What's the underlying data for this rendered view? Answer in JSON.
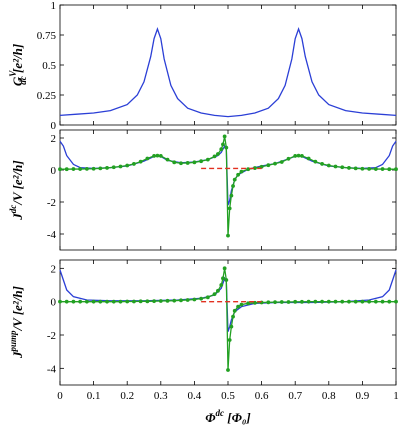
{
  "chart_data": [
    {
      "type": "line",
      "ylabel_main": "G",
      "ylabel_sup": "V",
      "ylabel_sub": "dc",
      "ylabel_unit": " [e²/h]",
      "xlim": [
        0,
        1
      ],
      "ylim": [
        0,
        1
      ],
      "yticks": [
        "0",
        "0.25",
        "0.5",
        "0.75",
        "1"
      ],
      "grid": false,
      "series": [
        {
          "color": "#2b3fd6",
          "x": [
            0,
            0.05,
            0.1,
            0.15,
            0.2,
            0.23,
            0.25,
            0.27,
            0.28,
            0.29,
            0.3,
            0.31,
            0.33,
            0.35,
            0.38,
            0.42,
            0.46,
            0.5,
            0.54,
            0.58,
            0.62,
            0.65,
            0.67,
            0.69,
            0.7,
            0.71,
            0.72,
            0.73,
            0.75,
            0.77,
            0.8,
            0.85,
            0.9,
            0.95,
            1.0
          ],
          "y": [
            0.08,
            0.09,
            0.1,
            0.12,
            0.17,
            0.25,
            0.36,
            0.57,
            0.72,
            0.8,
            0.72,
            0.55,
            0.33,
            0.22,
            0.14,
            0.1,
            0.08,
            0.07,
            0.08,
            0.1,
            0.14,
            0.22,
            0.33,
            0.55,
            0.72,
            0.8,
            0.72,
            0.57,
            0.36,
            0.25,
            0.17,
            0.12,
            0.1,
            0.09,
            0.08
          ]
        }
      ]
    },
    {
      "type": "line",
      "ylabel_main": "J",
      "ylabel_sup": "dc",
      "ylabel_sub": "",
      "ylabel_unit": "/V [e²/h]",
      "xlim": [
        0,
        1
      ],
      "ylim": [
        -5,
        2.5
      ],
      "yticks": [
        "-4",
        "-2",
        "0",
        "2"
      ],
      "grid": false,
      "series": [
        {
          "color": "#2b3fd6",
          "x": [
            0,
            0.01,
            0.02,
            0.04,
            0.06,
            0.1,
            0.15,
            0.2,
            0.25,
            0.28,
            0.29,
            0.3,
            0.32,
            0.36,
            0.4,
            0.44,
            0.47,
            0.48,
            0.49,
            0.495,
            0.5,
            0.505,
            0.51,
            0.52,
            0.53,
            0.56,
            0.6,
            0.64,
            0.68,
            0.7,
            0.71,
            0.72,
            0.75,
            0.8,
            0.85,
            0.9,
            0.94,
            0.96,
            0.98,
            0.99,
            1.0
          ],
          "y": [
            1.8,
            1.5,
            0.9,
            0.35,
            0.15,
            0.1,
            0.15,
            0.25,
            0.55,
            0.85,
            0.9,
            0.85,
            0.6,
            0.45,
            0.5,
            0.65,
            0.9,
            1.1,
            1.5,
            1.3,
            -2.2,
            -1.9,
            -1.3,
            -0.6,
            -0.3,
            0.05,
            0.25,
            0.4,
            0.7,
            0.85,
            0.9,
            0.85,
            0.55,
            0.25,
            0.15,
            0.1,
            0.15,
            0.35,
            0.9,
            1.5,
            1.8
          ]
        },
        {
          "color": "#22a022",
          "x": [
            0,
            0.02,
            0.04,
            0.06,
            0.08,
            0.1,
            0.12,
            0.14,
            0.16,
            0.18,
            0.2,
            0.22,
            0.24,
            0.26,
            0.28,
            0.29,
            0.3,
            0.32,
            0.34,
            0.36,
            0.38,
            0.4,
            0.42,
            0.44,
            0.46,
            0.47,
            0.48,
            0.485,
            0.49,
            0.495,
            0.5,
            0.505,
            0.51,
            0.515,
            0.52,
            0.53,
            0.54,
            0.56,
            0.58,
            0.6,
            0.62,
            0.64,
            0.66,
            0.68,
            0.7,
            0.71,
            0.72,
            0.74,
            0.76,
            0.78,
            0.8,
            0.82,
            0.84,
            0.86,
            0.88,
            0.9,
            0.92,
            0.94,
            0.96,
            0.98,
            1.0
          ],
          "y": [
            0.05,
            0.05,
            0.06,
            0.06,
            0.07,
            0.08,
            0.1,
            0.13,
            0.17,
            0.22,
            0.28,
            0.38,
            0.52,
            0.72,
            0.88,
            0.9,
            0.88,
            0.65,
            0.48,
            0.42,
            0.44,
            0.48,
            0.55,
            0.65,
            0.85,
            1.0,
            1.3,
            1.6,
            2.1,
            1.4,
            -4.1,
            -2.4,
            -1.6,
            -1.0,
            -0.6,
            -0.3,
            -0.1,
            0.05,
            0.12,
            0.2,
            0.3,
            0.4,
            0.5,
            0.7,
            0.88,
            0.9,
            0.88,
            0.72,
            0.52,
            0.38,
            0.28,
            0.22,
            0.17,
            0.13,
            0.1,
            0.08,
            0.07,
            0.06,
            0.06,
            0.05,
            0.05
          ]
        },
        {
          "color": "#e23020",
          "dashed": true,
          "x": [
            0.42,
            0.6
          ],
          "y": [
            0.1,
            0.1
          ]
        }
      ]
    },
    {
      "type": "line",
      "ylabel_main": "J",
      "ylabel_sup": "pump",
      "ylabel_sub": "",
      "ylabel_unit": "/V [e²/h]",
      "xlim": [
        0,
        1
      ],
      "ylim": [
        -5,
        2.5
      ],
      "yticks": [
        "-4",
        "-2",
        "0",
        "2"
      ],
      "xticks": [
        "0",
        "0.1",
        "0.2",
        "0.3",
        "0.4",
        "0.5",
        "0.6",
        "0.7",
        "0.8",
        "0.9",
        "1"
      ],
      "xlabel_main": "Φ",
      "xlabel_sup": "dc",
      "xlabel_unit": " [Φ₀]",
      "grid": false,
      "series": [
        {
          "color": "#2b3fd6",
          "x": [
            0,
            0.01,
            0.02,
            0.04,
            0.08,
            0.15,
            0.25,
            0.35,
            0.42,
            0.46,
            0.48,
            0.49,
            0.495,
            0.5,
            0.505,
            0.51,
            0.52,
            0.54,
            0.58,
            0.65,
            0.75,
            0.85,
            0.92,
            0.96,
            0.98,
            0.99,
            1.0
          ],
          "y": [
            1.9,
            1.3,
            0.7,
            0.3,
            0.1,
            0.05,
            0.05,
            0.1,
            0.2,
            0.4,
            0.8,
            1.4,
            1.2,
            -1.8,
            -1.5,
            -1.1,
            -0.6,
            -0.3,
            -0.1,
            -0.05,
            -0.05,
            0.0,
            0.1,
            0.3,
            0.7,
            1.3,
            1.9
          ]
        },
        {
          "color": "#22a022",
          "x": [
            0,
            0.02,
            0.04,
            0.06,
            0.08,
            0.1,
            0.12,
            0.14,
            0.16,
            0.18,
            0.2,
            0.22,
            0.24,
            0.26,
            0.28,
            0.3,
            0.32,
            0.34,
            0.36,
            0.38,
            0.4,
            0.42,
            0.44,
            0.46,
            0.47,
            0.48,
            0.485,
            0.49,
            0.495,
            0.5,
            0.505,
            0.51,
            0.515,
            0.52,
            0.53,
            0.54,
            0.56,
            0.58,
            0.6,
            0.62,
            0.64,
            0.66,
            0.68,
            0.7,
            0.72,
            0.74,
            0.76,
            0.78,
            0.8,
            0.82,
            0.84,
            0.86,
            0.88,
            0.9,
            0.92,
            0.94,
            0.96,
            0.98,
            1.0
          ],
          "y": [
            0.0,
            0.0,
            0.0,
            0.0,
            0.0,
            0.0,
            0.0,
            0.0,
            0.0,
            0.0,
            0.01,
            0.01,
            0.02,
            0.02,
            0.03,
            0.04,
            0.05,
            0.06,
            0.08,
            0.1,
            0.13,
            0.18,
            0.26,
            0.45,
            0.65,
            1.0,
            1.4,
            2.0,
            1.3,
            -4.1,
            -2.3,
            -1.5,
            -0.9,
            -0.55,
            -0.3,
            -0.18,
            -0.1,
            -0.07,
            -0.05,
            -0.04,
            -0.03,
            -0.02,
            -0.02,
            -0.01,
            -0.01,
            0.0,
            0.0,
            0.0,
            0.0,
            0.0,
            0.0,
            0.0,
            0.0,
            0.0,
            0.0,
            0.0,
            0.0,
            0.0,
            0.0
          ]
        },
        {
          "color": "#e23020",
          "dashed": true,
          "x": [
            0.42,
            0.6
          ],
          "y": [
            0.0,
            0.0
          ]
        }
      ]
    }
  ]
}
